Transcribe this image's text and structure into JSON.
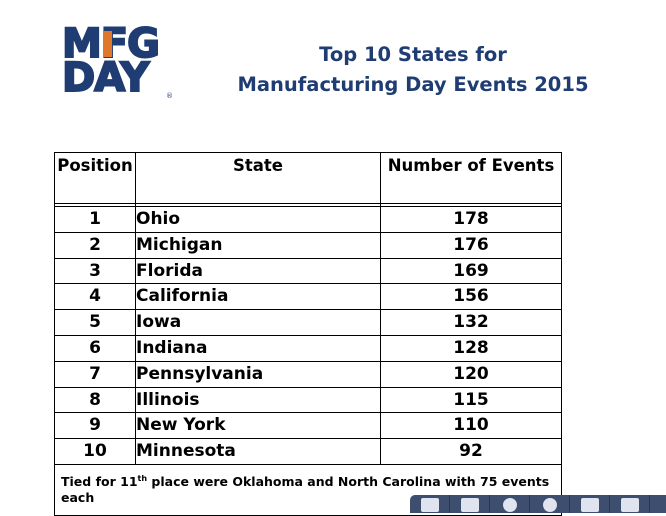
{
  "logo": {
    "line1": "MFG",
    "line2": "DAY",
    "reg": "®"
  },
  "title": {
    "line1": "Top 10 States for",
    "line2": "Manufacturing Day Events 2015"
  },
  "table": {
    "headers": [
      "Position",
      "State",
      "Number of Events"
    ],
    "rows": [
      {
        "position": "1",
        "state": "Ohio",
        "events": "178"
      },
      {
        "position": "2",
        "state": "Michigan",
        "events": "176"
      },
      {
        "position": "3",
        "state": "Florida",
        "events": "169"
      },
      {
        "position": "4",
        "state": "California",
        "events": "156"
      },
      {
        "position": "5",
        "state": "Iowa",
        "events": "132"
      },
      {
        "position": "6",
        "state": "Indiana",
        "events": "128"
      },
      {
        "position": "7",
        "state": "Pennsylvania",
        "events": "120"
      },
      {
        "position": "8",
        "state": "Illinois",
        "events": "115"
      },
      {
        "position": "9",
        "state": "New York",
        "events": "110"
      },
      {
        "position": "10",
        "state": "Minnesota",
        "events": "92"
      }
    ],
    "note": {
      "prefix": "Tied for 11",
      "sup": "th",
      "suffix": " place were Oklahoma and North Carolina with 75 events each"
    }
  },
  "toolbar": {
    "buttons": [
      "fit-page-icon",
      "fit-width-icon",
      "zoom-out-icon",
      "zoom-in-icon",
      "save-icon",
      "menu-icon"
    ]
  }
}
